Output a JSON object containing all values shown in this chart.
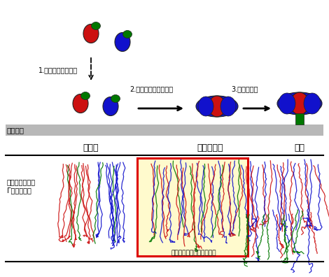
{
  "bg_color": "#ffffff",
  "membrane_color": "#b8b8b8",
  "red_color": "#cc1111",
  "blue_color": "#1111cc",
  "green_color": "#007700",
  "box_bg": "#fffacd",
  "box_border": "#dd0000",
  "label_akakettsu": "赤血球膜",
  "label_tanryotai": "単量体",
  "label_makuko_chukai": "膜孔中間体",
  "label_makuko": "膜孔",
  "label_step1": "1.赤血球膜への結合",
  "label_step2": "2.膜孔中間体への結合",
  "label_step3": "3.膜孔の形成",
  "label_organism_1": "黄色ブドウ球菌",
  "label_organism_2": "Γヘモリジン",
  "label_box": "本研究で明らかにした構造"
}
